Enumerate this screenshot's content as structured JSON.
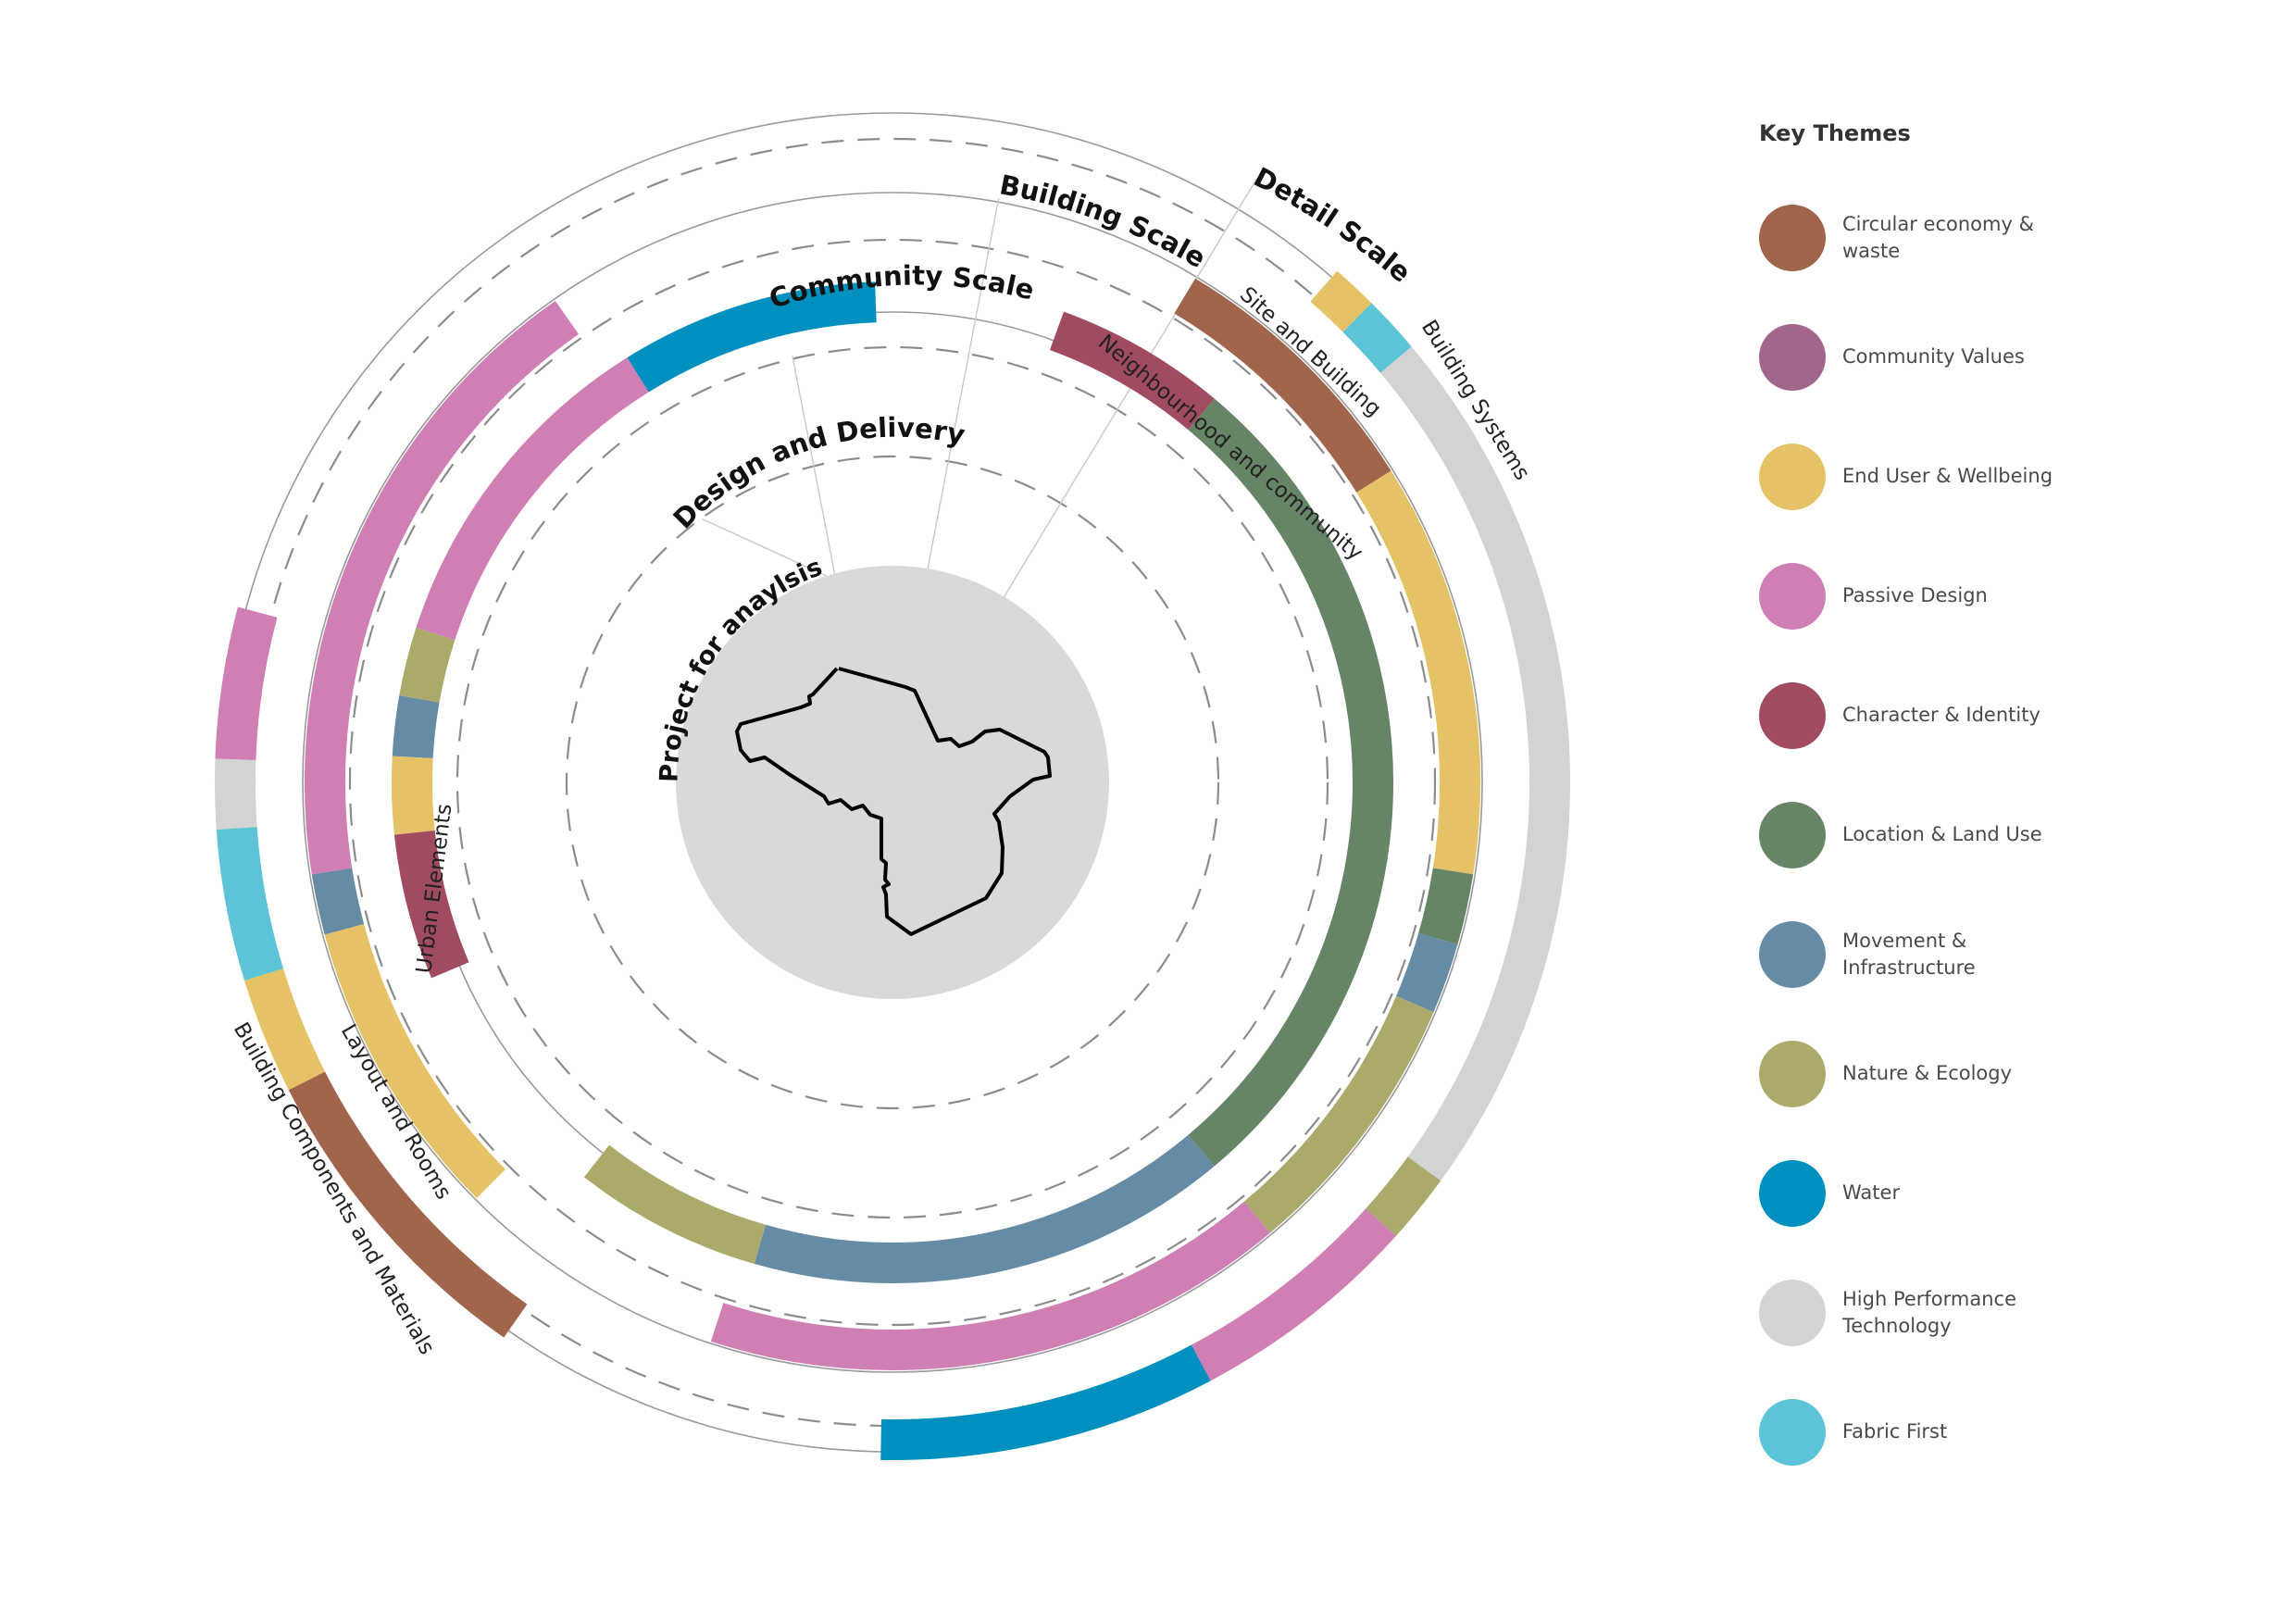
{
  "center": {
    "label": "Project for anaylsis"
  },
  "scales": [
    {
      "key": "design",
      "label": "Design and Delivery"
    },
    {
      "key": "community",
      "label": "Community Scale"
    },
    {
      "key": "building",
      "label": "Building Scale"
    },
    {
      "key": "detail",
      "label": "Detail Scale"
    }
  ],
  "sub_scales": {
    "urban": "Urban Elements",
    "neighbourhood": "Neighbourhood and community",
    "layout": "Layout and Rooms",
    "site": "Site and Building",
    "components": "Building Components and Materials",
    "systems": "Building Systems"
  },
  "legend": {
    "title": "Key Themes",
    "items": [
      {
        "key": "circular",
        "label": "Circular economy & waste",
        "color": "#A0654A"
      },
      {
        "key": "community",
        "label": "Community Values",
        "color": "#A0668C"
      },
      {
        "key": "enduser",
        "label": "End User & Wellbeing",
        "color": "#E5C266"
      },
      {
        "key": "passive",
        "label": "Passive Design",
        "color": "#D07FB5"
      },
      {
        "key": "character",
        "label": "Character & Identity",
        "color": "#A04B60"
      },
      {
        "key": "location",
        "label": "Location & Land Use",
        "color": "#668466"
      },
      {
        "key": "movement",
        "label": "Movement & Infrastructure",
        "color": "#668CA5"
      },
      {
        "key": "nature",
        "label": "Nature & Ecology",
        "color": "#ABAA6B"
      },
      {
        "key": "water",
        "label": "Water",
        "color": "#0090C0"
      },
      {
        "key": "hpt",
        "label": "High Performance Technology",
        "color": "#D3D3D3"
      },
      {
        "key": "fabric",
        "label": "Fabric First",
        "color": "#5DC4D8"
      }
    ]
  },
  "rings": [
    {
      "ring": "community",
      "theme": "water",
      "arc": [
        -32,
        -2
      ]
    },
    {
      "ring": "community",
      "theme": "passive",
      "arc": [
        -72,
        -32
      ]
    },
    {
      "ring": "community",
      "theme": "nature",
      "arc": [
        -80,
        -72
      ]
    },
    {
      "ring": "community",
      "theme": "movement",
      "arc": [
        -87,
        -80
      ]
    },
    {
      "ring": "community",
      "theme": "enduser",
      "arc": [
        -96,
        -87
      ]
    },
    {
      "ring": "community",
      "theme": "character",
      "arc": [
        -113,
        -96
      ]
    },
    {
      "ring": "community",
      "theme": "character",
      "arc": [
        20,
        40
      ]
    },
    {
      "ring": "community",
      "theme": "location",
      "arc": [
        40,
        140
      ]
    },
    {
      "ring": "community",
      "theme": "movement",
      "arc": [
        140,
        196
      ]
    },
    {
      "ring": "community",
      "theme": "nature",
      "arc": [
        196,
        218
      ]
    },
    {
      "ring": "building",
      "theme": "circular",
      "arc": [
        31,
        58
      ]
    },
    {
      "ring": "building",
      "theme": "enduser",
      "arc": [
        58,
        99
      ]
    },
    {
      "ring": "building",
      "theme": "location",
      "arc": [
        99,
        106
      ]
    },
    {
      "ring": "building",
      "theme": "movement",
      "arc": [
        106,
        113
      ]
    },
    {
      "ring": "building",
      "theme": "nature",
      "arc": [
        113,
        140
      ]
    },
    {
      "ring": "building",
      "theme": "passive",
      "arc": [
        140,
        198
      ]
    },
    {
      "ring": "building",
      "theme": "enduser",
      "arc": [
        225,
        255
      ]
    },
    {
      "ring": "building",
      "theme": "movement",
      "arc": [
        255,
        261
      ]
    },
    {
      "ring": "building",
      "theme": "passive",
      "arc": [
        261,
        325
      ]
    },
    {
      "ring": "detail",
      "theme": "enduser",
      "arc": [
        41,
        45
      ]
    },
    {
      "ring": "detail",
      "theme": "fabric",
      "arc": [
        45,
        50
      ]
    },
    {
      "ring": "detail",
      "theme": "hpt",
      "arc": [
        50,
        126
      ]
    },
    {
      "ring": "detail",
      "theme": "nature",
      "arc": [
        126,
        132
      ]
    },
    {
      "ring": "detail",
      "theme": "passive",
      "arc": [
        132,
        152
      ]
    },
    {
      "ring": "detail",
      "theme": "water",
      "arc": [
        152,
        181
      ]
    },
    {
      "ring": "detail",
      "theme": "circular",
      "arc": [
        215,
        243
      ]
    },
    {
      "ring": "detail",
      "theme": "enduser",
      "arc": [
        243,
        253
      ]
    },
    {
      "ring": "detail",
      "theme": "fabric",
      "arc": [
        253,
        266
      ]
    },
    {
      "ring": "detail",
      "theme": "hpt",
      "arc": [
        266,
        272
      ]
    },
    {
      "ring": "detail",
      "theme": "passive",
      "arc": [
        272,
        285
      ]
    }
  ]
}
